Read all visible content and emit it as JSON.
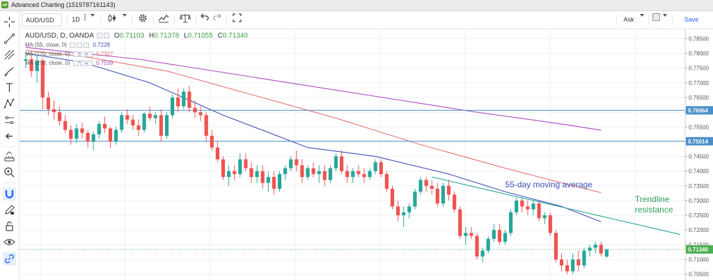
{
  "window": {
    "title": "Advanced Charting (1519787161143)"
  },
  "toolbar": {
    "symbol": "AUD/USD",
    "interval": "1D",
    "price_type": "Ask",
    "save_label": "Save"
  },
  "legend": {
    "title": "AUD/USD, D, OANDA",
    "open_label": "O",
    "open_value": "0.71103",
    "high_label": "H",
    "high_value": "0.71378",
    "low_label": "L",
    "low_value": "0.71055",
    "close_label": "C",
    "close_value": "0.71340",
    "ma55": {
      "label": "MA (55, close, 0)",
      "value": "0.7228",
      "color": "#3f51b5"
    },
    "ma100": {
      "label": "MA (1?0, close, 0)",
      "value": "0.7327",
      "color": "#e57373"
    },
    "ma200": {
      "label": "MA (2?0, close, 0)",
      "value": "0.7539",
      "color": "#ab47bc"
    }
  },
  "colors": {
    "up": "#26a69a",
    "down": "#ef5350",
    "hline": "#4a90c8",
    "trendline": "#26a69a",
    "annotation_ma": "#3f51b5",
    "annotation_trend": "#2e9e57",
    "grid": "#eef0f4",
    "last_price_bg": "#4caf50"
  },
  "chart_data": {
    "type": "candlestick",
    "instrument": "AUD/USD, D, OANDA",
    "y_axis": {
      "ticks": [
        0.785,
        0.78,
        0.775,
        0.77,
        0.765,
        0.76,
        0.755,
        0.75,
        0.745,
        0.74,
        0.735,
        0.73,
        0.725,
        0.72,
        0.715,
        0.71,
        0.705
      ],
      "labels": [
        "0.78500",
        "0.78000",
        "0.77500",
        "0.77000",
        "0.76500",
        "0.76000",
        "0.75500",
        "0.75000",
        "0.74500",
        "0.74000",
        "0.73500",
        "0.73000",
        "0.72500",
        "0.72000",
        "0.71500",
        "0.71000",
        "0.70500"
      ],
      "range": [
        0.7035,
        0.7877
      ]
    },
    "horizontal_lines": [
      {
        "value": 0.76064,
        "label": "0.76064"
      },
      {
        "value": 0.75014,
        "label": "0.75014"
      }
    ],
    "last_price": {
      "value": 0.7134,
      "label": "0.71340"
    },
    "candles": [
      [
        0.7775,
        0.78,
        0.775,
        0.778
      ],
      [
        0.778,
        0.78,
        0.772,
        0.774
      ],
      [
        0.774,
        0.779,
        0.77,
        0.7775
      ],
      [
        0.7775,
        0.7785,
        0.761,
        0.765
      ],
      [
        0.765,
        0.767,
        0.759,
        0.761
      ],
      [
        0.761,
        0.764,
        0.7575,
        0.76
      ],
      [
        0.76,
        0.762,
        0.7555,
        0.757
      ],
      [
        0.757,
        0.759,
        0.753,
        0.754
      ],
      [
        0.754,
        0.7555,
        0.749,
        0.751
      ],
      [
        0.751,
        0.756,
        0.7495,
        0.7545
      ],
      [
        0.7545,
        0.7565,
        0.751,
        0.753
      ],
      [
        0.753,
        0.754,
        0.748,
        0.75
      ],
      [
        0.75,
        0.7535,
        0.747,
        0.7525
      ],
      [
        0.7525,
        0.757,
        0.751,
        0.756
      ],
      [
        0.756,
        0.7585,
        0.753,
        0.7545
      ],
      [
        0.7545,
        0.755,
        0.748,
        0.75
      ],
      [
        0.75,
        0.755,
        0.749,
        0.754
      ],
      [
        0.754,
        0.76,
        0.753,
        0.759
      ],
      [
        0.759,
        0.761,
        0.756,
        0.7575
      ],
      [
        0.7575,
        0.759,
        0.754,
        0.7555
      ],
      [
        0.7555,
        0.7575,
        0.752,
        0.754
      ],
      [
        0.754,
        0.76,
        0.753,
        0.7595
      ],
      [
        0.7595,
        0.762,
        0.757,
        0.758
      ],
      [
        0.758,
        0.76,
        0.756,
        0.759
      ],
      [
        0.759,
        0.761,
        0.75,
        0.752
      ],
      [
        0.752,
        0.76,
        0.751,
        0.759
      ],
      [
        0.759,
        0.766,
        0.758,
        0.765
      ],
      [
        0.765,
        0.768,
        0.76,
        0.762
      ],
      [
        0.762,
        0.768,
        0.761,
        0.767
      ],
      [
        0.767,
        0.769,
        0.76,
        0.7615
      ],
      [
        0.7615,
        0.764,
        0.758,
        0.76
      ],
      [
        0.76,
        0.762,
        0.757,
        0.759
      ],
      [
        0.759,
        0.76,
        0.75,
        0.752
      ],
      [
        0.752,
        0.754,
        0.747,
        0.748
      ],
      [
        0.748,
        0.75,
        0.743,
        0.744
      ],
      [
        0.744,
        0.745,
        0.737,
        0.738
      ],
      [
        0.738,
        0.742,
        0.735,
        0.74
      ],
      [
        0.74,
        0.742,
        0.737,
        0.739
      ],
      [
        0.739,
        0.746,
        0.738,
        0.744
      ],
      [
        0.744,
        0.746,
        0.74,
        0.741
      ],
      [
        0.741,
        0.743,
        0.736,
        0.738
      ],
      [
        0.738,
        0.742,
        0.736,
        0.74
      ],
      [
        0.74,
        0.742,
        0.734,
        0.736
      ],
      [
        0.736,
        0.74,
        0.733,
        0.738
      ],
      [
        0.738,
        0.74,
        0.732,
        0.734
      ],
      [
        0.734,
        0.74,
        0.733,
        0.739
      ],
      [
        0.739,
        0.742,
        0.737,
        0.741
      ],
      [
        0.741,
        0.745,
        0.74,
        0.744
      ],
      [
        0.744,
        0.747,
        0.74,
        0.742
      ],
      [
        0.742,
        0.744,
        0.736,
        0.738
      ],
      [
        0.738,
        0.742,
        0.737,
        0.741
      ],
      [
        0.741,
        0.743,
        0.738,
        0.739
      ],
      [
        0.739,
        0.742,
        0.736,
        0.74
      ],
      [
        0.74,
        0.742,
        0.735,
        0.737
      ],
      [
        0.737,
        0.742,
        0.736,
        0.741
      ],
      [
        0.741,
        0.746,
        0.74,
        0.745
      ],
      [
        0.745,
        0.747,
        0.739,
        0.74
      ],
      [
        0.74,
        0.742,
        0.736,
        0.738
      ],
      [
        0.738,
        0.741,
        0.736,
        0.74
      ],
      [
        0.74,
        0.742,
        0.738,
        0.739
      ],
      [
        0.739,
        0.741,
        0.736,
        0.738
      ],
      [
        0.738,
        0.741,
        0.737,
        0.74
      ],
      [
        0.74,
        0.744,
        0.739,
        0.743
      ],
      [
        0.743,
        0.744,
        0.738,
        0.739
      ],
      [
        0.739,
        0.74,
        0.733,
        0.734
      ],
      [
        0.734,
        0.735,
        0.727,
        0.728
      ],
      [
        0.728,
        0.73,
        0.723,
        0.725
      ],
      [
        0.725,
        0.728,
        0.721,
        0.726
      ],
      [
        0.726,
        0.729,
        0.724,
        0.728
      ],
      [
        0.728,
        0.734,
        0.727,
        0.733
      ],
      [
        0.733,
        0.738,
        0.732,
        0.737
      ],
      [
        0.737,
        0.738,
        0.733,
        0.735
      ],
      [
        0.735,
        0.737,
        0.732,
        0.734
      ],
      [
        0.734,
        0.736,
        0.728,
        0.729
      ],
      [
        0.729,
        0.736,
        0.728,
        0.735
      ],
      [
        0.735,
        0.737,
        0.73,
        0.732
      ],
      [
        0.732,
        0.733,
        0.726,
        0.727
      ],
      [
        0.727,
        0.728,
        0.717,
        0.718
      ],
      [
        0.718,
        0.721,
        0.715,
        0.719
      ],
      [
        0.719,
        0.721,
        0.717,
        0.718
      ],
      [
        0.718,
        0.719,
        0.71,
        0.711
      ],
      [
        0.711,
        0.714,
        0.709,
        0.713
      ],
      [
        0.713,
        0.718,
        0.712,
        0.717
      ],
      [
        0.717,
        0.722,
        0.716,
        0.72
      ],
      [
        0.72,
        0.722,
        0.715,
        0.716
      ],
      [
        0.716,
        0.72,
        0.715,
        0.719
      ],
      [
        0.719,
        0.727,
        0.718,
        0.726
      ],
      [
        0.726,
        0.731,
        0.725,
        0.73
      ],
      [
        0.73,
        0.731,
        0.726,
        0.728
      ],
      [
        0.728,
        0.73,
        0.725,
        0.727
      ],
      [
        0.727,
        0.73,
        0.725,
        0.729
      ],
      [
        0.729,
        0.73,
        0.723,
        0.724
      ],
      [
        0.724,
        0.726,
        0.722,
        0.725
      ],
      [
        0.725,
        0.726,
        0.718,
        0.719
      ],
      [
        0.719,
        0.72,
        0.709,
        0.71
      ],
      [
        0.71,
        0.712,
        0.706,
        0.708
      ],
      [
        0.708,
        0.71,
        0.705,
        0.706
      ],
      [
        0.706,
        0.712,
        0.705,
        0.71
      ],
      [
        0.71,
        0.713,
        0.706,
        0.708
      ],
      [
        0.708,
        0.714,
        0.707,
        0.713
      ],
      [
        0.713,
        0.715,
        0.711,
        0.714
      ],
      [
        0.714,
        0.716,
        0.712,
        0.715
      ],
      [
        0.715,
        0.716,
        0.711,
        0.712
      ],
      [
        0.711,
        0.7138,
        0.7106,
        0.7134
      ]
    ],
    "moving_averages": [
      {
        "name": "MA (55, close, 0)",
        "color": "#3f51b5",
        "points": [
          [
            0,
            0.78
          ],
          [
            10,
            0.777
          ],
          [
            22,
            0.77
          ],
          [
            35,
            0.759
          ],
          [
            50,
            0.748
          ],
          [
            62,
            0.745
          ],
          [
            75,
            0.739
          ],
          [
            85,
            0.733
          ],
          [
            95,
            0.728
          ],
          [
            102,
            0.7228
          ]
        ]
      },
      {
        "name": "MA (100, close, 0)",
        "color": "#e57373",
        "points": [
          [
            0,
            0.781
          ],
          [
            10,
            0.779
          ],
          [
            25,
            0.774
          ],
          [
            40,
            0.766
          ],
          [
            55,
            0.758
          ],
          [
            70,
            0.749
          ],
          [
            85,
            0.741
          ],
          [
            95,
            0.736
          ],
          [
            102,
            0.7327
          ]
        ]
      },
      {
        "name": "MA (200, close, 0)",
        "color": "#ab47bc",
        "points": [
          [
            0,
            0.782
          ],
          [
            20,
            0.778
          ],
          [
            40,
            0.772
          ],
          [
            60,
            0.766
          ],
          [
            80,
            0.76
          ],
          [
            95,
            0.756
          ],
          [
            102,
            0.7539
          ]
        ]
      }
    ],
    "trendline": {
      "points": [
        [
          72,
          0.738
        ],
        [
          116,
          0.7185
        ]
      ]
    },
    "annotations": [
      {
        "text": "55-day moving average",
        "at": [
          85,
          0.7345
        ],
        "color_key": "annotation_ma"
      },
      {
        "text": "Trendline",
        "at": [
          108,
          0.7295
        ],
        "color_key": "annotation_trend"
      },
      {
        "text": "resistance",
        "at": [
          108,
          0.726
        ],
        "color_key": "annotation_trend"
      }
    ]
  }
}
